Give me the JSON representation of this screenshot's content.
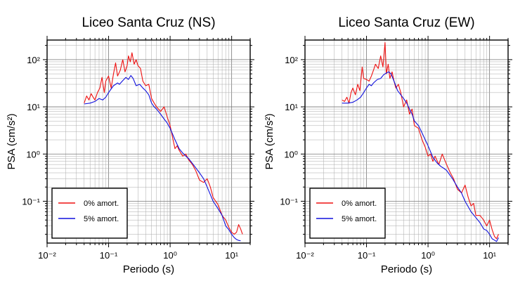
{
  "chart_data": [
    {
      "type": "line",
      "title": "Liceo Santa Cruz (NS)",
      "xlabel": "Periodo (s)",
      "ylabel": "PSA (cm/s²)",
      "xscale": "log",
      "yscale": "log",
      "xlim": [
        0.01,
        20
      ],
      "ylim": [
        0.013,
        260
      ],
      "xticks": [
        "10⁻²",
        "10⁻¹",
        "10⁰",
        "10¹"
      ],
      "yticks": [
        "10⁻¹",
        "10⁰",
        "10¹",
        "10²"
      ],
      "grid": true,
      "legend_position": "bottom-left",
      "series": [
        {
          "name": "0% amort.",
          "color": "#ee1111",
          "x": [
            0.04,
            0.044,
            0.048,
            0.052,
            0.056,
            0.06,
            0.066,
            0.072,
            0.078,
            0.085,
            0.09,
            0.1,
            0.11,
            0.12,
            0.13,
            0.14,
            0.155,
            0.17,
            0.185,
            0.2,
            0.21,
            0.225,
            0.24,
            0.26,
            0.28,
            0.3,
            0.33,
            0.36,
            0.4,
            0.45,
            0.5,
            0.55,
            0.6,
            0.7,
            0.8,
            0.9,
            1.0,
            1.1,
            1.2,
            1.3,
            1.4,
            1.6,
            1.8,
            2.0,
            2.3,
            2.6,
            3.0,
            3.5,
            4.0,
            4.5,
            5.0,
            5.5,
            6.0,
            7.0,
            8.0,
            9.0,
            10.0,
            11.0,
            12.0,
            13.0,
            14.0,
            15.0
          ],
          "values": [
            12,
            17,
            14,
            19,
            16,
            14,
            20,
            25,
            42,
            20,
            35,
            45,
            25,
            50,
            85,
            45,
            60,
            100,
            55,
            75,
            120,
            90,
            140,
            80,
            100,
            75,
            65,
            35,
            28,
            30,
            15,
            12,
            10,
            8,
            10,
            6,
            4,
            2.2,
            1.3,
            1.5,
            1.2,
            0.9,
            1.0,
            0.75,
            0.6,
            0.45,
            0.28,
            0.25,
            0.3,
            0.2,
            0.12,
            0.1,
            0.085,
            0.05,
            0.04,
            0.028,
            0.022,
            0.02,
            0.022,
            0.032,
            0.026,
            0.02
          ]
        },
        {
          "name": "5% amort.",
          "color": "#1111dd",
          "x": [
            0.04,
            0.05,
            0.06,
            0.07,
            0.08,
            0.09,
            0.1,
            0.11,
            0.12,
            0.13,
            0.14,
            0.15,
            0.17,
            0.19,
            0.21,
            0.23,
            0.25,
            0.28,
            0.32,
            0.36,
            0.4,
            0.45,
            0.5,
            0.55,
            0.6,
            0.7,
            0.8,
            0.9,
            1.0,
            1.2,
            1.4,
            1.6,
            1.8,
            2.0,
            2.5,
            3.0,
            3.5,
            4.0,
            5.0,
            6.0,
            7.0,
            8.0,
            9.0,
            10.0,
            11.0,
            12.0,
            13.0,
            14.0
          ],
          "values": [
            11.5,
            12,
            13,
            15,
            14,
            16,
            20,
            24,
            28,
            30,
            32,
            30,
            36,
            42,
            38,
            46,
            40,
            28,
            30,
            25,
            22,
            18,
            12,
            10,
            9,
            7,
            5.5,
            4.5,
            3.5,
            2,
            1.3,
            1.05,
            0.9,
            0.8,
            0.55,
            0.4,
            0.3,
            0.2,
            0.1,
            0.07,
            0.05,
            0.03,
            0.025,
            0.02,
            0.017,
            0.0155,
            0.0148,
            0.0145
          ]
        }
      ]
    },
    {
      "type": "line",
      "title": "Liceo Santa Cruz (EW)",
      "xlabel": "Periodo (s)",
      "ylabel": "PSA (cm/s²)",
      "xscale": "log",
      "yscale": "log",
      "xlim": [
        0.01,
        20
      ],
      "ylim": [
        0.013,
        260
      ],
      "xticks": [
        "10⁻²",
        "10⁻¹",
        "10⁰",
        "10¹"
      ],
      "yticks": [
        "10⁻¹",
        "10⁰",
        "10¹",
        "10²"
      ],
      "grid": true,
      "legend_position": "bottom-left",
      "series": [
        {
          "name": "0% amort.",
          "color": "#ee1111",
          "x": [
            0.04,
            0.044,
            0.048,
            0.052,
            0.056,
            0.06,
            0.066,
            0.072,
            0.078,
            0.085,
            0.09,
            0.1,
            0.11,
            0.12,
            0.13,
            0.14,
            0.155,
            0.17,
            0.185,
            0.2,
            0.21,
            0.225,
            0.24,
            0.26,
            0.28,
            0.3,
            0.33,
            0.36,
            0.4,
            0.45,
            0.5,
            0.55,
            0.6,
            0.7,
            0.8,
            0.9,
            1.0,
            1.1,
            1.2,
            1.3,
            1.5,
            1.7,
            2.0,
            2.3,
            2.6,
            3.0,
            3.5,
            4.0,
            4.5,
            5.0,
            5.5,
            6.0,
            7.0,
            8.0,
            9.0,
            10.0,
            11.0,
            12.0,
            13.0,
            14.0
          ],
          "values": [
            14,
            13,
            16,
            12,
            20,
            25,
            18,
            30,
            22,
            70,
            40,
            38,
            35,
            45,
            60,
            80,
            65,
            120,
            70,
            230,
            50,
            80,
            40,
            55,
            35,
            25,
            30,
            20,
            10,
            14,
            7,
            9,
            4,
            3.5,
            2,
            1.4,
            0.9,
            1.0,
            0.7,
            0.9,
            0.6,
            1.0,
            0.6,
            0.4,
            0.3,
            0.18,
            0.15,
            0.22,
            0.12,
            0.08,
            0.09,
            0.05,
            0.05,
            0.04,
            0.03,
            0.04,
            0.025,
            0.018,
            0.016,
            0.02
          ]
        },
        {
          "name": "5% amort.",
          "color": "#1111dd",
          "x": [
            0.04,
            0.05,
            0.06,
            0.07,
            0.08,
            0.09,
            0.1,
            0.11,
            0.12,
            0.13,
            0.14,
            0.15,
            0.17,
            0.19,
            0.21,
            0.23,
            0.25,
            0.28,
            0.32,
            0.36,
            0.4,
            0.45,
            0.5,
            0.55,
            0.6,
            0.7,
            0.8,
            0.9,
            1.0,
            1.2,
            1.4,
            1.6,
            1.8,
            2.0,
            2.5,
            3.0,
            3.5,
            4.0,
            5.0,
            6.0,
            7.0,
            8.0,
            9.0,
            10.0,
            11.0,
            12.0,
            13.0,
            14.0
          ],
          "values": [
            12,
            12,
            12.5,
            14,
            16,
            20,
            25,
            30,
            28,
            32,
            35,
            38,
            40,
            48,
            52,
            55,
            50,
            35,
            22,
            18,
            15,
            12,
            9,
            7,
            5,
            4,
            2.8,
            2,
            1.5,
            0.85,
            0.65,
            0.55,
            0.5,
            0.45,
            0.3,
            0.2,
            0.15,
            0.1,
            0.06,
            0.045,
            0.035,
            0.026,
            0.024,
            0.02,
            0.016,
            0.015,
            0.014,
            0.017
          ]
        }
      ]
    }
  ]
}
